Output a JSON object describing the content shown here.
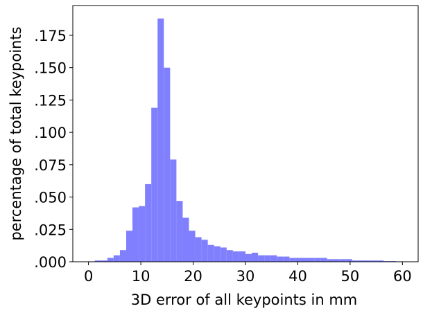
{
  "chart_data": {
    "type": "histogram",
    "xlabel": "3D error of all keypoints in mm",
    "ylabel": "percentage of total keypoints",
    "color": "#8080ff",
    "bins": [
      0,
      1.2,
      2.4,
      3.6,
      4.8,
      6,
      7.2,
      8.4,
      9.6,
      10.8,
      12,
      13.2,
      14.4,
      15.6,
      16.8,
      18,
      19.2,
      20.4,
      21.6,
      22.8,
      24,
      25.2,
      26.4,
      27.6,
      28.8,
      30,
      31.2,
      32.4,
      33.6,
      34.8,
      36,
      37.2,
      38.4,
      39.6,
      40.8,
      42,
      43.2,
      44.4,
      45.6,
      46.8,
      48,
      49.2,
      50.4,
      51.6,
      52.8,
      54,
      55.2,
      56.4,
      57.6,
      58.8,
      60
    ],
    "counts": [
      0.0003,
      0.001,
      0.001,
      0.003,
      0.005,
      0.009,
      0.024,
      0.042,
      0.043,
      0.06,
      0.119,
      0.188,
      0.15,
      0.079,
      0.047,
      0.034,
      0.024,
      0.019,
      0.017,
      0.013,
      0.012,
      0.011,
      0.009,
      0.008,
      0.008,
      0.006,
      0.007,
      0.005,
      0.005,
      0.005,
      0.004,
      0.004,
      0.003,
      0.003,
      0.003,
      0.003,
      0.003,
      0.003,
      0.002,
      0.002,
      0.002,
      0.002,
      0.001,
      0.001,
      0.001,
      0.001,
      0.001,
      0.0005,
      0.0005,
      0.0003
    ],
    "xlim": [
      -3,
      63
    ],
    "ylim": [
      0,
      0.198
    ],
    "xticks": [
      0,
      10,
      20,
      30,
      40,
      50,
      60
    ],
    "yticks": [
      {
        "value": 0,
        "label": ".000"
      },
      {
        "value": 0.025,
        "label": ".025"
      },
      {
        "value": 0.05,
        "label": ".050"
      },
      {
        "value": 0.075,
        "label": ".075"
      },
      {
        "value": 0.1,
        "label": ".100"
      },
      {
        "value": 0.125,
        "label": ".125"
      },
      {
        "value": 0.15,
        "label": ".150"
      },
      {
        "value": 0.175,
        "label": ".175"
      }
    ]
  }
}
